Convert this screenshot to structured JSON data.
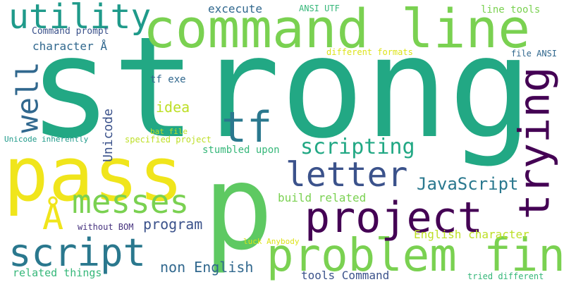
{
  "background": "#ffffff",
  "words": [
    {
      "text": "strong",
      "color": "#22a884",
      "vertical": false
    },
    {
      "text": "command line",
      "color": "#7ad151",
      "vertical": false
    },
    {
      "text": "pass",
      "color": "#f0e51b",
      "vertical": false
    },
    {
      "text": "p",
      "color": "#5ec962",
      "vertical": false
    },
    {
      "text": "trying",
      "color": "#440154",
      "vertical": true
    },
    {
      "text": "problem find",
      "color": "#7ad151",
      "vertical": false
    },
    {
      "text": "project",
      "color": "#440154",
      "vertical": false
    },
    {
      "text": "script",
      "color": "#2a788e",
      "vertical": false
    },
    {
      "text": "letter",
      "color": "#3b528b",
      "vertical": false
    },
    {
      "text": "utility",
      "color": "#1f9a8a",
      "vertical": false
    },
    {
      "text": "tf",
      "color": "#2a788e",
      "vertical": false
    },
    {
      "text": "messes",
      "color": "#7ad151",
      "vertical": false
    },
    {
      "text": "Å",
      "color": "#f0e51b",
      "vertical": false
    },
    {
      "text": "well",
      "color": "#31688e",
      "vertical": true
    },
    {
      "text": "scripting",
      "color": "#22a884",
      "vertical": false
    },
    {
      "text": "JavaScript",
      "color": "#2a788e",
      "vertical": false
    },
    {
      "text": "idea",
      "color": "#bddf26",
      "vertical": false
    },
    {
      "text": "program",
      "color": "#3b528b",
      "vertical": false
    },
    {
      "text": "non English",
      "color": "#31688e",
      "vertical": false
    },
    {
      "text": "Unicode",
      "color": "#3b528b",
      "vertical": true
    },
    {
      "text": "build related",
      "color": "#7ad151",
      "vertical": false
    },
    {
      "text": "excecute",
      "color": "#31688e",
      "vertical": false
    },
    {
      "text": "character Å",
      "color": "#31688e",
      "vertical": false
    },
    {
      "text": "English character",
      "color": "#bddf26",
      "vertical": false
    },
    {
      "text": "tools Command",
      "color": "#3b528b",
      "vertical": false
    },
    {
      "text": "related things",
      "color": "#35b779",
      "vertical": false
    },
    {
      "text": "stumbled upon",
      "color": "#35b779",
      "vertical": false
    },
    {
      "text": "tf exe",
      "color": "#31688e",
      "vertical": false
    },
    {
      "text": "line tools",
      "color": "#7ad151",
      "vertical": false
    },
    {
      "text": "Command prompt",
      "color": "#3b528b",
      "vertical": false
    },
    {
      "text": "without BOM",
      "color": "#46327e",
      "vertical": false
    },
    {
      "text": "ANSI UTF",
      "color": "#35b779",
      "vertical": false
    },
    {
      "text": "file ANSI",
      "color": "#31688e",
      "vertical": false
    },
    {
      "text": "Unicode inherently",
      "color": "#1f9a8a",
      "vertical": false
    },
    {
      "text": "specified project",
      "color": "#bddf26",
      "vertical": false
    },
    {
      "text": "bat file",
      "color": "#bddf26",
      "vertical": false
    },
    {
      "text": "different formats",
      "color": "#dde318",
      "vertical": false
    },
    {
      "text": "luck Anybody",
      "color": "#dde318",
      "vertical": false
    },
    {
      "text": "tried different",
      "color": "#35b779",
      "vertical": false
    }
  ]
}
